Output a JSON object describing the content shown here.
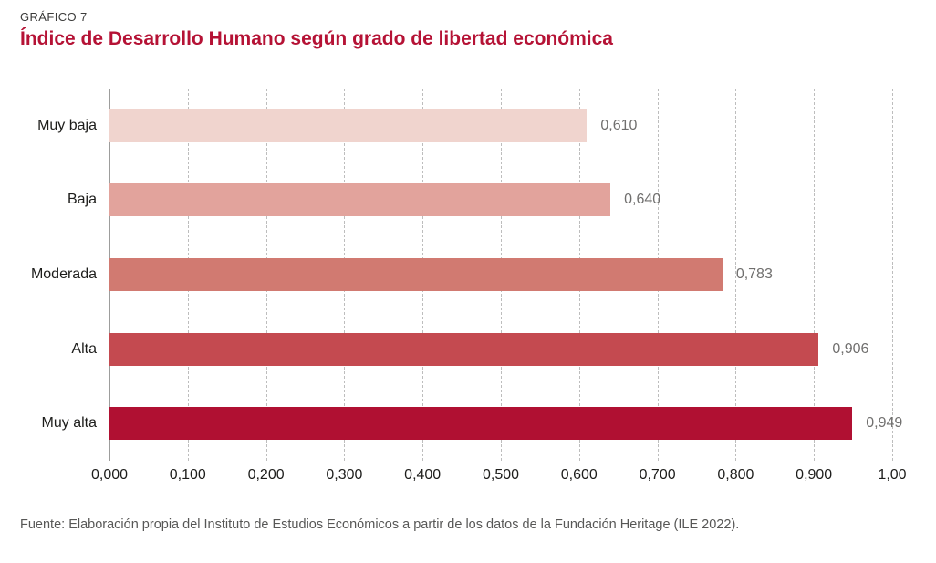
{
  "header": {
    "kicker": "GRÁFICO 7",
    "title": "Índice de Desarrollo Humano según grado de libertad económica"
  },
  "footer": {
    "source": "Fuente: Elaboración propia del Instituto de Estudios Económicos a partir de los datos de la Fundación Heritage (ILE 2022)."
  },
  "colors": {
    "title": "#b51235",
    "gridline": "#bdbdbd",
    "axis_line": "#9d9d9c",
    "category_text": "#1d1d1b",
    "value_text": "#706f6e",
    "footer_text": "#575756"
  },
  "chart_data": {
    "type": "bar",
    "orientation": "horizontal",
    "title": "Índice de Desarrollo Humano según grado de libertad económica",
    "categories": [
      "Muy baja",
      "Baja",
      "Moderada",
      "Alta",
      "Muy alta"
    ],
    "values": [
      0.61,
      0.64,
      0.783,
      0.906,
      0.949
    ],
    "value_labels": [
      "0,610",
      "0,640",
      "0,783",
      "0,906",
      "0,949"
    ],
    "bar_colors": [
      "#f0d4ce",
      "#e2a39c",
      "#d17a71",
      "#c44a50",
      "#b01032"
    ],
    "xlabel": "",
    "ylabel": "",
    "xlim": [
      0,
      1
    ],
    "x_ticks": [
      0,
      0.1,
      0.2,
      0.3,
      0.4,
      0.5,
      0.6,
      0.7,
      0.8,
      0.9,
      1.0
    ],
    "x_tick_labels": [
      "0,000",
      "0,100",
      "0,200",
      "0,300",
      "0,400",
      "0,500",
      "0,600",
      "0,700",
      "0,800",
      "0,900",
      "1,00"
    ],
    "grid": "vertical-dashed",
    "legend": "none"
  }
}
